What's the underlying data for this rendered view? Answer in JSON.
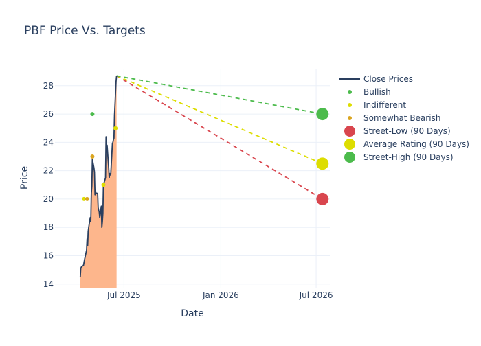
{
  "chart_data": {
    "type": "line",
    "title": "PBF Price Vs. Targets",
    "xlabel": "Date",
    "ylabel": "Price",
    "xlim": [
      "2025-02-20",
      "2026-07-27"
    ],
    "ylim": [
      13.7,
      29.2
    ],
    "x_ticks": [
      {
        "value": "2025-07-01",
        "label": "Jul 2025"
      },
      {
        "value": "2026-01-01",
        "label": "Jan 2026"
      },
      {
        "value": "2026-07-01",
        "label": "Jul 2026"
      }
    ],
    "y_ticks": [
      14,
      16,
      18,
      20,
      22,
      24,
      26,
      28
    ],
    "grid": true,
    "legend_position": "right",
    "series": [
      {
        "name": "Close Prices",
        "type": "line",
        "color": "#2a3f5f",
        "fill_color": "#fdb68c",
        "points": [
          [
            "2025-04-09",
            14.5
          ],
          [
            "2025-04-10",
            15.1
          ],
          [
            "2025-04-11",
            15.2
          ],
          [
            "2025-04-14",
            15.3
          ],
          [
            "2025-04-15",
            15.3
          ],
          [
            "2025-04-17",
            15.7
          ],
          [
            "2025-04-21",
            16.4
          ],
          [
            "2025-04-22",
            17.2
          ],
          [
            "2025-04-23",
            16.7
          ],
          [
            "2025-04-24",
            17.7
          ],
          [
            "2025-04-25",
            18.0
          ],
          [
            "2025-04-28",
            18.7
          ],
          [
            "2025-04-29",
            18.4
          ],
          [
            "2025-04-30",
            20.4
          ],
          [
            "2025-05-01",
            20.9
          ],
          [
            "2025-05-02",
            22.8
          ],
          [
            "2025-05-05",
            22.2
          ],
          [
            "2025-05-06",
            21.9
          ],
          [
            "2025-05-07",
            20.3
          ],
          [
            "2025-05-08",
            20.6
          ],
          [
            "2025-05-09",
            20.4
          ],
          [
            "2025-05-12",
            20.4
          ],
          [
            "2025-05-13",
            19.4
          ],
          [
            "2025-05-14",
            19.2
          ],
          [
            "2025-05-15",
            19.1
          ],
          [
            "2025-05-16",
            18.7
          ],
          [
            "2025-05-19",
            19.5
          ],
          [
            "2025-05-20",
            18.0
          ],
          [
            "2025-05-21",
            18.4
          ],
          [
            "2025-05-22",
            19.0
          ],
          [
            "2025-05-23",
            21.0
          ],
          [
            "2025-05-27",
            21.5
          ],
          [
            "2025-05-28",
            24.4
          ],
          [
            "2025-05-29",
            23.3
          ],
          [
            "2025-05-30",
            23.8
          ],
          [
            "2025-06-02",
            22.2
          ],
          [
            "2025-06-03",
            21.5
          ],
          [
            "2025-06-04",
            21.8
          ],
          [
            "2025-06-05",
            21.7
          ],
          [
            "2025-06-06",
            21.8
          ],
          [
            "2025-06-09",
            23.9
          ],
          [
            "2025-06-10",
            24.0
          ],
          [
            "2025-06-11",
            24.2
          ],
          [
            "2025-06-12",
            24.3
          ],
          [
            "2025-06-13",
            25.9
          ],
          [
            "2025-06-16",
            28.3
          ],
          [
            "2025-06-17",
            28.7
          ]
        ]
      },
      {
        "name": "Bullish",
        "type": "scatter",
        "color": "#4cbb4c",
        "points": [
          [
            "2025-05-02",
            26.0
          ]
        ]
      },
      {
        "name": "Indifferent",
        "type": "scatter",
        "color": "#dddd00",
        "points": [
          [
            "2025-04-16",
            20.0
          ],
          [
            "2025-05-23",
            21.0
          ],
          [
            "2025-06-15",
            25.0
          ]
        ]
      },
      {
        "name": "Somewhat Bearish",
        "type": "scatter",
        "color": "#daa520",
        "points": [
          [
            "2025-04-22",
            20.0
          ],
          [
            "2025-05-02",
            23.0
          ]
        ]
      },
      {
        "name": "Street-Low (90 Days)",
        "type": "target",
        "color": "#d9464e",
        "line": [
          [
            "2025-06-17",
            28.7
          ],
          [
            "2026-07-13",
            20.0
          ]
        ]
      },
      {
        "name": "Average Rating (90 Days)",
        "type": "target",
        "color": "#dddd00",
        "line": [
          [
            "2025-06-17",
            28.7
          ],
          [
            "2026-07-13",
            22.5
          ]
        ]
      },
      {
        "name": "Street-High (90 Days)",
        "type": "target",
        "color": "#4cbb4c",
        "line": [
          [
            "2025-06-17",
            28.7
          ],
          [
            "2026-07-13",
            26.0
          ]
        ]
      }
    ]
  }
}
